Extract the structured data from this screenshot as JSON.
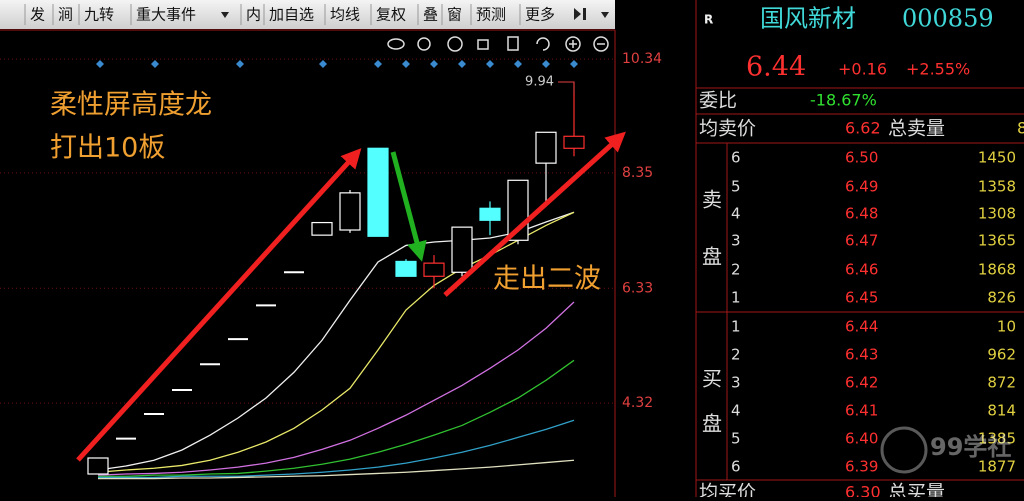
{
  "toolbar": {
    "items": [
      "发",
      "涧",
      "九转",
      "重大事件",
      "内",
      "加自选",
      "均线",
      "复权",
      "叠",
      "窗",
      "预测",
      "更多"
    ]
  },
  "chart_data": {
    "type": "candlestick",
    "annotations": [
      "柔性屏高度龙",
      "打出10板",
      "走出二波"
    ],
    "ylim": [
      2.8,
      10.85
    ],
    "yticks": [
      4.32,
      6.33,
      8.35,
      10.34
    ],
    "grid": true,
    "candles": {
      "open": [
        3.08,
        3.7,
        4.13,
        4.55,
        5.0,
        5.44,
        6.03,
        6.61,
        7.26,
        7.35,
        8.78,
        6.8,
        6.54,
        6.61,
        7.73,
        7.17,
        8.52,
        8.78
      ],
      "high": [
        3.36,
        3.7,
        4.13,
        4.55,
        5.0,
        5.44,
        6.03,
        6.61,
        7.48,
        8.05,
        8.78,
        6.84,
        6.91,
        7.4,
        7.85,
        8.22,
        9.06,
        9.94
      ],
      "low": [
        3.08,
        3.7,
        4.13,
        4.55,
        5.0,
        5.44,
        6.03,
        6.61,
        7.26,
        7.3,
        7.24,
        6.54,
        6.33,
        6.54,
        7.26,
        7.1,
        7.8,
        8.64
      ],
      "close": [
        3.36,
        3.7,
        4.13,
        4.55,
        5.0,
        5.44,
        6.03,
        6.61,
        7.48,
        8.0,
        7.24,
        6.54,
        6.77,
        7.4,
        7.52,
        8.22,
        9.06,
        8.99
      ],
      "colors": [
        "#ffffff",
        "#ffffff",
        "#ffffff",
        "#ffffff",
        "#ffffff",
        "#ffffff",
        "#ffffff",
        "#ffffff",
        "#ffffff",
        "#ffffff",
        "#54ffff",
        "#54ffff",
        "#ff3030",
        "#ffffff",
        "#54ffff",
        "#ffffff",
        "#ffffff",
        "#ff3030"
      ]
    },
    "series": [
      {
        "color": "#f0f0f0",
        "values": [
          3.15,
          3.22,
          3.32,
          3.5,
          3.76,
          4.06,
          4.41,
          4.86,
          5.42,
          6.12,
          6.79,
          7.08,
          7.14,
          7.17,
          7.21,
          7.31,
          7.49,
          7.66
        ]
      },
      {
        "color": "#e8e86a",
        "values": [
          3.11,
          3.15,
          3.18,
          3.23,
          3.32,
          3.46,
          3.64,
          3.88,
          4.2,
          4.58,
          5.25,
          5.95,
          6.38,
          6.68,
          6.91,
          7.17,
          7.43,
          7.66
        ]
      },
      {
        "color": "#d070e0",
        "values": [
          3.06,
          3.08,
          3.09,
          3.11,
          3.15,
          3.2,
          3.27,
          3.37,
          3.51,
          3.67,
          3.88,
          4.11,
          4.37,
          4.63,
          4.93,
          5.25,
          5.63,
          6.09
        ]
      },
      {
        "color": "#30c030",
        "values": [
          3.04,
          3.04,
          3.06,
          3.06,
          3.08,
          3.09,
          3.13,
          3.18,
          3.25,
          3.34,
          3.46,
          3.6,
          3.76,
          3.93,
          4.16,
          4.41,
          4.72,
          5.07
        ]
      },
      {
        "color": "#30a0c8",
        "values": [
          3.02,
          3.02,
          3.02,
          3.04,
          3.04,
          3.04,
          3.06,
          3.08,
          3.11,
          3.15,
          3.2,
          3.27,
          3.36,
          3.46,
          3.58,
          3.72,
          3.86,
          4.02
        ]
      },
      {
        "color": "#e0e0c0",
        "values": [
          3.0,
          3.0,
          3.0,
          3.01,
          3.01,
          3.02,
          3.03,
          3.04,
          3.05,
          3.07,
          3.09,
          3.11,
          3.14,
          3.17,
          3.2,
          3.24,
          3.28,
          3.32
        ]
      }
    ]
  },
  "quote": {
    "flag": "R",
    "name": "国风新材",
    "code": "000859",
    "price": "6.44",
    "change": "+0.16",
    "change_pct": "+2.55%",
    "ratio_label": "委比",
    "ratio": "-18.67%",
    "avg_sell_label": "均卖价",
    "avg_sell": "6.62",
    "total_sell_label": "总卖量",
    "total_sell": "8",
    "avg_buy_label": "均买价",
    "avg_buy": "6.30",
    "total_buy_label": "总买量"
  },
  "orderbook": {
    "sell_label": [
      "卖",
      "盘"
    ],
    "buy_label": [
      "买",
      "盘"
    ],
    "sell": [
      [
        "6",
        "6.50",
        "1450"
      ],
      [
        "5",
        "6.49",
        "1358"
      ],
      [
        "4",
        "6.48",
        "1308"
      ],
      [
        "3",
        "6.47",
        "1365"
      ],
      [
        "2",
        "6.46",
        "1868"
      ],
      [
        "1",
        "6.45",
        "826"
      ]
    ],
    "buy": [
      [
        "1",
        "6.44",
        "10"
      ],
      [
        "2",
        "6.43",
        "962"
      ],
      [
        "3",
        "6.42",
        "872"
      ],
      [
        "4",
        "6.41",
        "814"
      ],
      [
        "5",
        "6.40",
        "1385"
      ],
      [
        "6",
        "6.39",
        "1877"
      ]
    ]
  },
  "watermark": "99学社"
}
